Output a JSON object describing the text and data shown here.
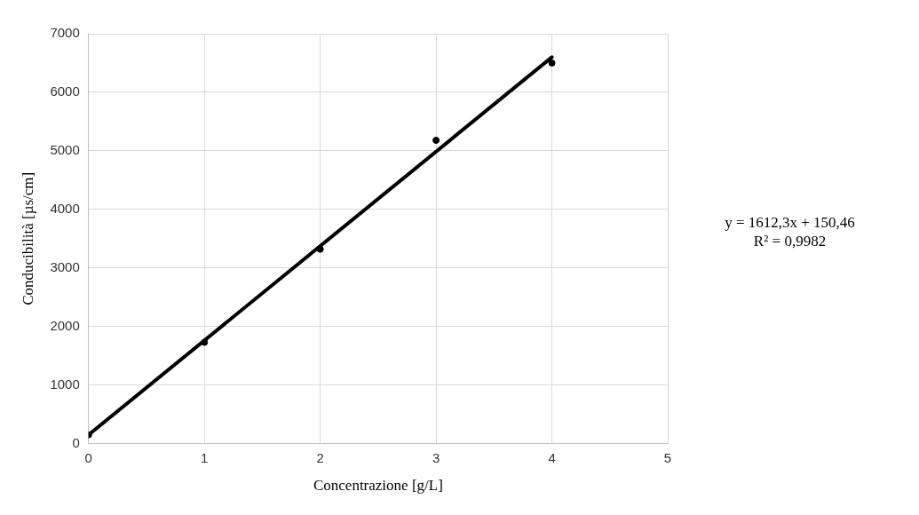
{
  "chart_data": {
    "type": "scatter",
    "xlabel": "Concentrazione [g/L]",
    "ylabel": "Conducibilità [µs/cm]",
    "series": [
      {
        "color": "#000000",
        "x": [
          0,
          1,
          2,
          3,
          4
        ],
        "values": [
          150,
          1730,
          3320,
          5180,
          6500
        ]
      },
      {
        "type": "line",
        "color": "#000000",
        "x": [
          0,
          4
        ],
        "values": [
          150,
          6600
        ],
        "marker": "none"
      }
    ],
    "xlim": [
      0,
      5
    ],
    "xticks": [
      0,
      1,
      2,
      3,
      4,
      5
    ],
    "ylim": [
      0,
      7000
    ],
    "yticks": [
      0,
      1000,
      2000,
      3000,
      4000,
      5000,
      6000,
      7000
    ],
    "grid": true,
    "legend": false,
    "marker": "circle",
    "annotations": [
      "y = 1612,3x + 150,46",
      "R² = 0,9982"
    ]
  }
}
